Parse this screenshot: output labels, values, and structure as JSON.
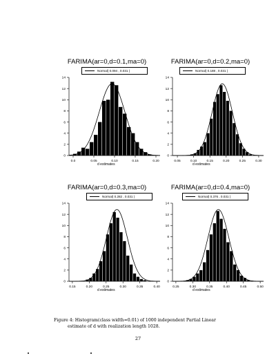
{
  "chart_data": [
    {
      "type": "bar",
      "title": "FARIMA(ar=0,d=0.1,ma=0)",
      "legend": "Normal( 0.094 , 0.031 )",
      "xlabel": "d estimates",
      "xlim": [
        -0.01,
        0.21
      ],
      "ylim": [
        0,
        14
      ],
      "x_ticks": [
        "0.0",
        "0.05",
        "0.10",
        "0.15",
        "0.20"
      ],
      "x_tick_values": [
        0.0,
        0.05,
        0.1,
        0.15,
        0.2
      ],
      "y_ticks": [
        "0",
        "2",
        "4",
        "6",
        "8",
        "10",
        "12",
        "14"
      ],
      "bins": [
        0.005,
        0.015,
        0.025,
        0.035,
        0.045,
        0.055,
        0.065,
        0.075,
        0.085,
        0.095,
        0.105,
        0.115,
        0.125,
        0.135,
        0.145,
        0.155,
        0.165,
        0.175,
        0.185
      ],
      "values": [
        0.3,
        0.7,
        1.4,
        1.2,
        2.4,
        3.7,
        6.0,
        9.8,
        10.0,
        13.2,
        12.6,
        8.7,
        7.5,
        5.1,
        4.0,
        2.4,
        1.2,
        0.6,
        0.2
      ],
      "curve": {
        "mean": 0.094,
        "sd": 0.031
      }
    },
    {
      "type": "bar",
      "title": "FARIMA(ar=0,d=0.2,ma=0)",
      "legend": "Normal( 0.188 , 0.031 )",
      "xlabel": "d estimates",
      "xlim": [
        0.035,
        0.315
      ],
      "ylim": [
        0,
        14
      ],
      "x_ticks": [
        "0.05",
        "0.10",
        "0.15",
        "0.20",
        "0.25",
        "0.30"
      ],
      "x_tick_values": [
        0.05,
        0.1,
        0.15,
        0.2,
        0.25,
        0.3
      ],
      "y_ticks": [
        "0",
        "2",
        "4",
        "6",
        "8",
        "10",
        "12",
        "14"
      ],
      "bins": [
        0.095,
        0.105,
        0.115,
        0.125,
        0.135,
        0.145,
        0.155,
        0.165,
        0.175,
        0.185,
        0.195,
        0.205,
        0.215,
        0.225,
        0.235,
        0.245,
        0.255,
        0.265,
        0.275
      ],
      "values": [
        0.2,
        0.4,
        1.0,
        1.6,
        2.4,
        4.0,
        6.6,
        9.6,
        11.0,
        12.6,
        11.4,
        9.8,
        8.0,
        5.8,
        3.8,
        2.2,
        1.2,
        0.6,
        0.2
      ],
      "curve": {
        "mean": 0.188,
        "sd": 0.031
      }
    },
    {
      "type": "bar",
      "title": "FARIMA(ar=0,d=0.3,ma=0)",
      "legend": "Normal( 0.282 , 0.031 )",
      "xlabel": "d estimates",
      "xlim": [
        0.14,
        0.41
      ],
      "ylim": [
        0,
        14
      ],
      "x_ticks": [
        "0.15",
        "0.20",
        "0.25",
        "0.30",
        "0.35",
        "0.40"
      ],
      "x_tick_values": [
        0.15,
        0.2,
        0.25,
        0.3,
        0.35,
        0.4
      ],
      "y_ticks": [
        "0",
        "2",
        "4",
        "6",
        "8",
        "10",
        "12",
        "14"
      ],
      "bins": [
        0.195,
        0.205,
        0.215,
        0.225,
        0.235,
        0.245,
        0.255,
        0.265,
        0.275,
        0.285,
        0.295,
        0.305,
        0.315,
        0.325,
        0.335,
        0.345,
        0.355,
        0.365
      ],
      "values": [
        0.3,
        0.6,
        1.4,
        2.2,
        3.6,
        5.4,
        8.4,
        10.4,
        12.4,
        11.4,
        8.8,
        7.2,
        4.6,
        3.0,
        1.4,
        0.8,
        0.4,
        0.2
      ],
      "curve": {
        "mean": 0.282,
        "sd": 0.031
      }
    },
    {
      "type": "bar",
      "title": "FARIMA(ar=0,d=0.4,ma=0)",
      "legend": "Normal( 0.376 , 0.031 )",
      "xlabel": "d estimates",
      "xlim": [
        0.24,
        0.51
      ],
      "ylim": [
        0,
        14
      ],
      "x_ticks": [
        "0.25",
        "0.30",
        "0.35",
        "0.40",
        "0.45",
        "0.50"
      ],
      "x_tick_values": [
        0.25,
        0.3,
        0.35,
        0.4,
        0.45,
        0.5
      ],
      "y_ticks": [
        "0",
        "2",
        "4",
        "6",
        "8",
        "10",
        "12",
        "14"
      ],
      "bins": [
        0.285,
        0.295,
        0.305,
        0.315,
        0.325,
        0.335,
        0.345,
        0.355,
        0.365,
        0.375,
        0.385,
        0.395,
        0.405,
        0.415,
        0.425,
        0.435,
        0.445,
        0.455,
        0.465
      ],
      "values": [
        0.2,
        0.4,
        0.8,
        1.4,
        2.0,
        3.4,
        5.6,
        8.4,
        10.4,
        12.6,
        11.2,
        9.4,
        7.0,
        5.4,
        3.0,
        2.0,
        1.0,
        0.6,
        0.2
      ],
      "curve": {
        "mean": 0.376,
        "sd": 0.031
      }
    }
  ],
  "caption": {
    "line1": "Figure 4: Histogram(class width=0.01) of 1000 independent Partial Linear",
    "line2": "estimate of d with realization length 1028."
  },
  "page_number": "27"
}
